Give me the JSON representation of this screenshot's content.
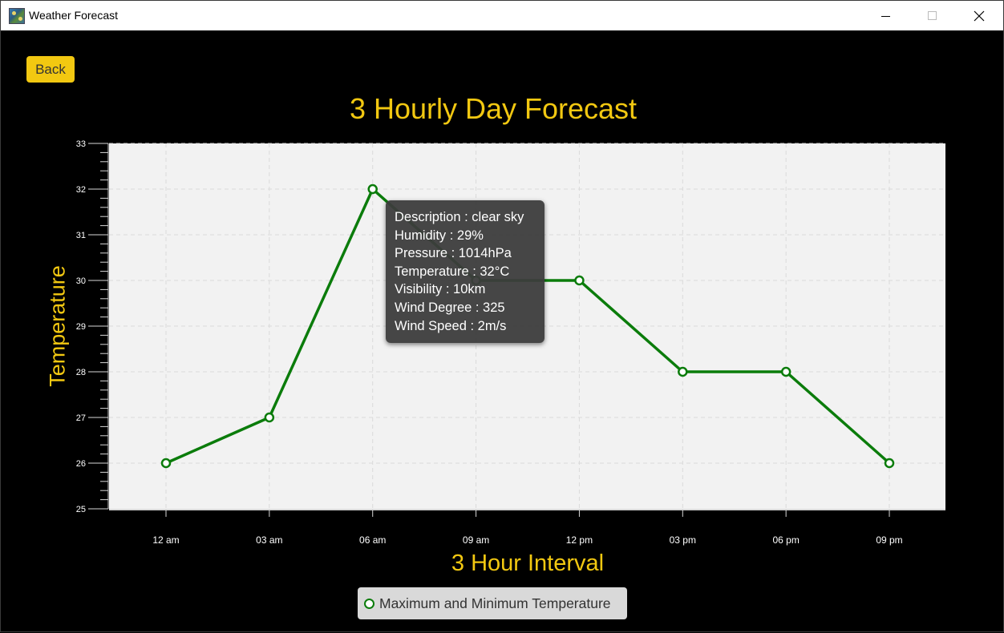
{
  "window": {
    "title": "Weather Forecast"
  },
  "toolbar": {
    "back_label": "Back"
  },
  "colors": {
    "accent": "#f2c811",
    "series": "#0b7c0b",
    "plot_background": "#f2f2f2"
  },
  "chart_data": {
    "type": "line",
    "title": "3 Hourly Day Forecast",
    "xlabel": "3 Hour Interval",
    "ylabel": "Temperature",
    "categories": [
      "12 am",
      "03 am",
      "06 am",
      "09 am",
      "12 pm",
      "03 pm",
      "06 pm",
      "09 pm"
    ],
    "series": [
      {
        "name": "Maximum and Minimum Temperature",
        "values": [
          26,
          27,
          32,
          30,
          30,
          28,
          28,
          26
        ]
      }
    ],
    "ylim": [
      25,
      33
    ],
    "yticks": [
      "25",
      "26",
      "27",
      "28",
      "29",
      "30",
      "31",
      "32",
      "33"
    ],
    "grid": true,
    "legend": "bottom-center"
  },
  "tooltip": {
    "lines": [
      "Description : clear sky",
      "Humidity : 29%",
      "Pressure : 1014hPa",
      "Temperature : 32°C",
      "Visibility : 10km",
      "Wind Degree : 325",
      "Wind Speed : 2m/s"
    ]
  }
}
